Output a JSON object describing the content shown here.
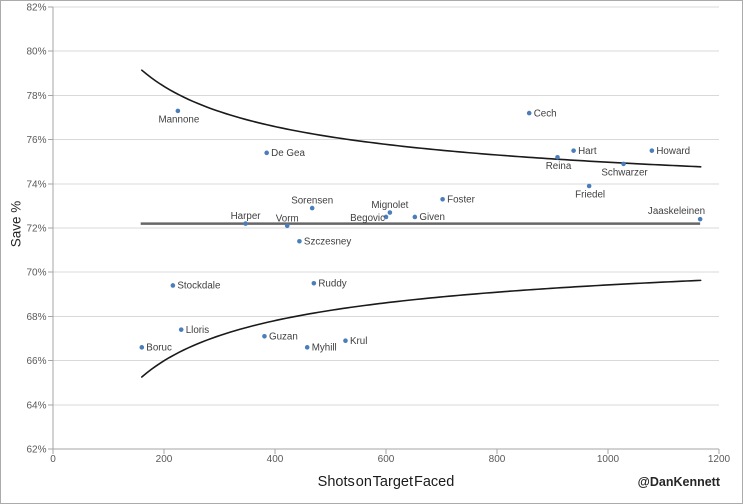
{
  "chart_data": {
    "type": "scatter",
    "title": "",
    "xlabel": "Shots on Target Faced",
    "ylabel": "Save %",
    "watermark": "@DanKennett",
    "xlim": [
      0,
      1200
    ],
    "ylim": [
      62,
      82
    ],
    "grid": "horizontal-only",
    "legend": "none",
    "x_ticks": [
      {
        "value": 0,
        "label": "0"
      },
      {
        "value": 200,
        "label": "200"
      },
      {
        "value": 400,
        "label": "400"
      },
      {
        "value": 600,
        "label": "600"
      },
      {
        "value": 800,
        "label": "800"
      },
      {
        "value": 1000,
        "label": "1000"
      },
      {
        "value": 1200,
        "label": "1200"
      }
    ],
    "y_ticks": [
      {
        "value": 62,
        "label": "62%"
      },
      {
        "value": 64,
        "label": "64%"
      },
      {
        "value": 66,
        "label": "66%"
      },
      {
        "value": 68,
        "label": "68%"
      },
      {
        "value": 70,
        "label": "70%"
      },
      {
        "value": 72,
        "label": "72%"
      },
      {
        "value": 74,
        "label": "74%"
      },
      {
        "value": 76,
        "label": "76%"
      },
      {
        "value": 78,
        "label": "78%"
      },
      {
        "value": 80,
        "label": "80%"
      },
      {
        "value": 82,
        "label": "82%"
      }
    ],
    "points": [
      {
        "name": "Mannone",
        "shots": 225,
        "save_pct": 77.3,
        "label_pos": "below"
      },
      {
        "name": "De Gea",
        "shots": 385,
        "save_pct": 75.4,
        "label_pos": "right"
      },
      {
        "name": "Cech",
        "shots": 858,
        "save_pct": 77.2,
        "label_pos": "right"
      },
      {
        "name": "Hart",
        "shots": 938,
        "save_pct": 75.5,
        "label_pos": "right"
      },
      {
        "name": "Reina",
        "shots": 909,
        "save_pct": 75.2,
        "label_pos": "below"
      },
      {
        "name": "Howard",
        "shots": 1079,
        "save_pct": 75.5,
        "label_pos": "right"
      },
      {
        "name": "Schwarzer",
        "shots": 1028,
        "save_pct": 74.9,
        "label_pos": "below"
      },
      {
        "name": "Friedel",
        "shots": 966,
        "save_pct": 73.9,
        "label_pos": "below"
      },
      {
        "name": "Jaaskeleinen",
        "shots": 1166,
        "save_pct": 72.4,
        "label_pos": "above-left"
      },
      {
        "name": "Foster",
        "shots": 702,
        "save_pct": 73.3,
        "label_pos": "right"
      },
      {
        "name": "Sorensen",
        "shots": 467,
        "save_pct": 72.9,
        "label_pos": "above"
      },
      {
        "name": "Mignolet",
        "shots": 607,
        "save_pct": 72.7,
        "label_pos": "above"
      },
      {
        "name": "Begovic",
        "shots": 600,
        "save_pct": 72.5,
        "label_pos": "left"
      },
      {
        "name": "Given",
        "shots": 652,
        "save_pct": 72.5,
        "label_pos": "right"
      },
      {
        "name": "Harper",
        "shots": 347,
        "save_pct": 72.2,
        "label_pos": "above"
      },
      {
        "name": "Vorm",
        "shots": 422,
        "save_pct": 72.1,
        "label_pos": "above"
      },
      {
        "name": "Szczesney",
        "shots": 444,
        "save_pct": 71.4,
        "label_pos": "right"
      },
      {
        "name": "Stockdale",
        "shots": 216,
        "save_pct": 69.4,
        "label_pos": "right"
      },
      {
        "name": "Ruddy",
        "shots": 470,
        "save_pct": 69.5,
        "label_pos": "right"
      },
      {
        "name": "Lloris",
        "shots": 231,
        "save_pct": 67.4,
        "label_pos": "right"
      },
      {
        "name": "Boruc",
        "shots": 160,
        "save_pct": 66.6,
        "label_pos": "right"
      },
      {
        "name": "Guzan",
        "shots": 381,
        "save_pct": 67.1,
        "label_pos": "right"
      },
      {
        "name": "Myhill",
        "shots": 458,
        "save_pct": 66.6,
        "label_pos": "right"
      },
      {
        "name": "Krul",
        "shots": 527,
        "save_pct": 66.9,
        "label_pos": "right"
      }
    ],
    "mean_line": {
      "save_pct": 72.2,
      "shots_start": 158,
      "shots_end": 1166
    },
    "control_curves": {
      "center_pct": 72.2,
      "k": 87.8,
      "shots_start": 160,
      "shots_end": 1167,
      "formula": "save_pct = center_pct ± k / sqrt(shots)"
    },
    "colors": {
      "point": "#4a7ebb",
      "point_label": "#404040",
      "curve": "#1a1a1a",
      "mean_line": "#676767",
      "grid": "#d9d9d9",
      "axis": "#a6a6a6",
      "tick_label": "#595959",
      "axis_title": "#262626",
      "watermark": "#262626",
      "border": "#ababab",
      "background": "#ffffff"
    }
  }
}
